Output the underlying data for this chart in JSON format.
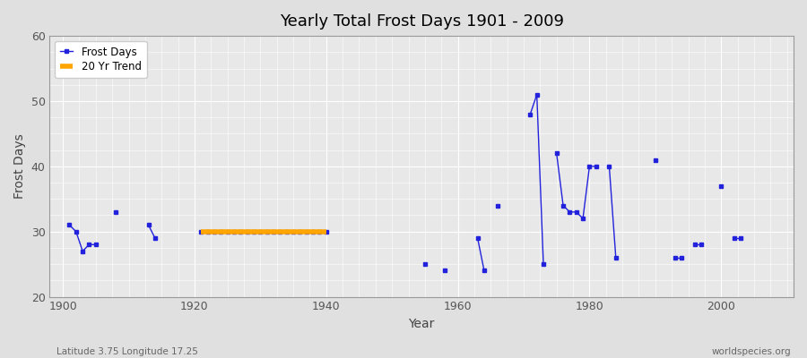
{
  "title": "Yearly Total Frost Days 1901 - 2009",
  "xlabel": "Year",
  "ylabel": "Frost Days",
  "xlim": [
    1898,
    2011
  ],
  "ylim": [
    20,
    60
  ],
  "yticks": [
    20,
    30,
    40,
    50,
    60
  ],
  "background_color": "#e0e0e0",
  "plot_bg_color": "#e8e8e8",
  "frost_days_color": "#2222dd",
  "trend_color": "#FFA500",
  "segments": [
    [
      [
        1901,
        31
      ],
      [
        1902,
        30
      ],
      [
        1903,
        27
      ],
      [
        1904,
        28
      ],
      [
        1905,
        28
      ]
    ],
    [
      [
        1908,
        33
      ]
    ],
    [
      [
        1913,
        31
      ],
      [
        1914,
        29
      ]
    ],
    [
      [
        1921,
        30
      ],
      [
        1922,
        30
      ],
      [
        1923,
        30
      ],
      [
        1924,
        30
      ],
      [
        1925,
        30
      ],
      [
        1926,
        30
      ],
      [
        1927,
        30
      ],
      [
        1928,
        30
      ],
      [
        1929,
        30
      ],
      [
        1930,
        30
      ],
      [
        1931,
        30
      ],
      [
        1932,
        30
      ],
      [
        1933,
        30
      ],
      [
        1934,
        30
      ],
      [
        1935,
        30
      ],
      [
        1936,
        30
      ],
      [
        1937,
        30
      ],
      [
        1938,
        30
      ],
      [
        1939,
        30
      ],
      [
        1940,
        30
      ]
    ],
    [
      [
        1955,
        25
      ]
    ],
    [
      [
        1958,
        24
      ]
    ],
    [
      [
        1963,
        29
      ],
      [
        1964,
        24
      ]
    ],
    [
      [
        1966,
        34
      ]
    ],
    [
      [
        1971,
        48
      ],
      [
        1972,
        51
      ],
      [
        1973,
        25
      ]
    ],
    [
      [
        1975,
        42
      ],
      [
        1976,
        34
      ],
      [
        1977,
        33
      ],
      [
        1978,
        33
      ],
      [
        1979,
        32
      ],
      [
        1980,
        40
      ],
      [
        1981,
        40
      ]
    ],
    [
      [
        1983,
        40
      ],
      [
        1984,
        26
      ]
    ],
    [
      [
        1990,
        41
      ]
    ],
    [
      [
        1993,
        26
      ],
      [
        1994,
        26
      ]
    ],
    [
      [
        1996,
        28
      ],
      [
        1997,
        28
      ]
    ],
    [
      [
        2000,
        37
      ]
    ],
    [
      [
        2002,
        29
      ],
      [
        2003,
        29
      ]
    ]
  ],
  "trend_data": [
    [
      1921,
      30
    ],
    [
      1940,
      30
    ]
  ],
  "footer_left": "Latitude 3.75 Longitude 17.25",
  "footer_right": "worldspecies.org"
}
